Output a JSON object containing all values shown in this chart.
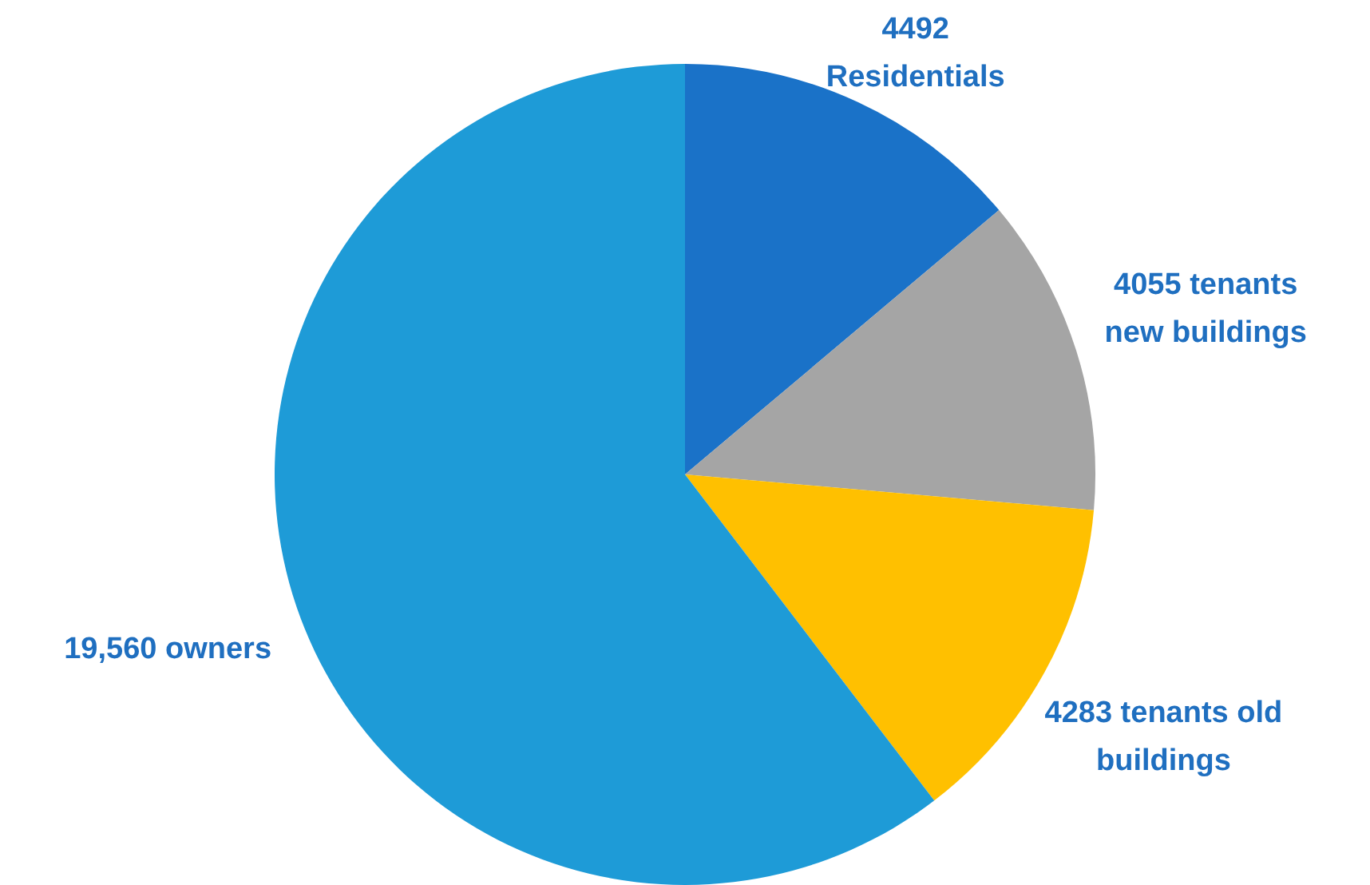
{
  "chart_data": {
    "type": "pie",
    "categories": [
      "Residentials",
      "tenants new buildings",
      "tenants old buildings",
      "owners"
    ],
    "values": [
      4492,
      4055,
      4283,
      19560
    ],
    "value_labels": [
      "4492",
      "4055",
      "4283",
      "19,560"
    ],
    "colors": [
      "#1a72c8",
      "#a5a5a5",
      "#ffc000",
      "#1e9bd7"
    ],
    "legend": false
  }
}
